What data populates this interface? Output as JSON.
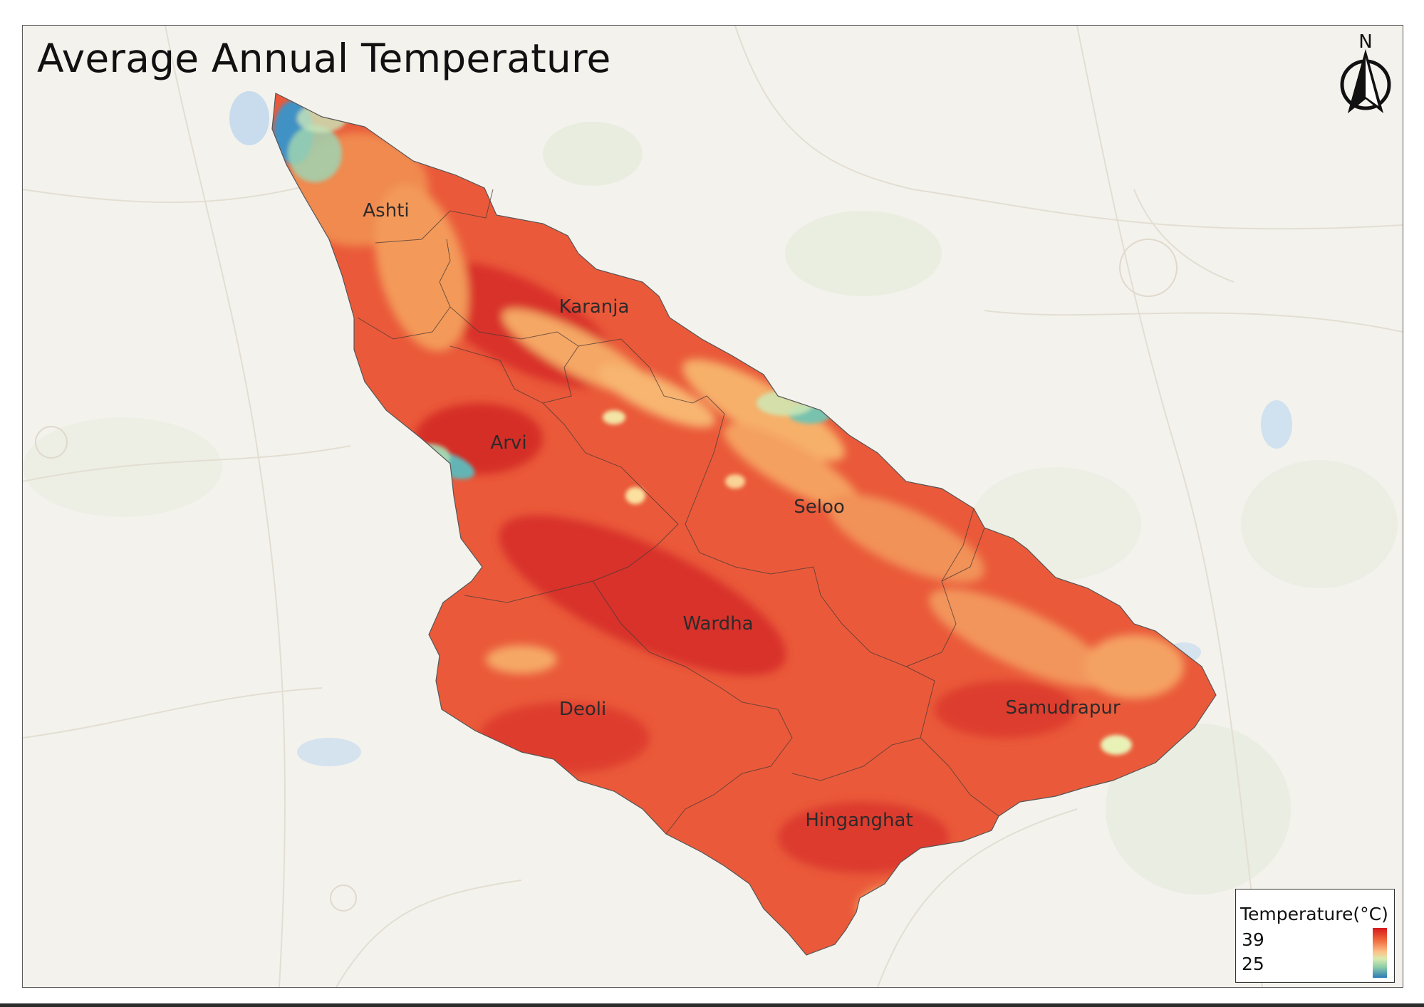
{
  "title": "Average Annual Temperature",
  "north_arrow": {
    "label": "N",
    "icon": "north-arrow-icon"
  },
  "tahsils": [
    {
      "name": "Ashti"
    },
    {
      "name": "Karanja"
    },
    {
      "name": "Arvi"
    },
    {
      "name": "Seloo"
    },
    {
      "name": "Wardha"
    },
    {
      "name": "Deoli"
    },
    {
      "name": "Samudrapur"
    },
    {
      "name": "Hinganghat"
    }
  ],
  "legend": {
    "title": "Temperature(°C)",
    "max": "39",
    "min": "25",
    "colors": [
      "#d7191c",
      "#f06a3d",
      "#fdc28a",
      "#d8ebb0",
      "#8fcfa8",
      "#2c7bb6"
    ]
  },
  "colors": {
    "basemap": "#f4f2ed",
    "hot": "#e34a33",
    "warm": "#f7a263",
    "cool": "#9fd5b0",
    "cold": "#3a8fc6"
  }
}
